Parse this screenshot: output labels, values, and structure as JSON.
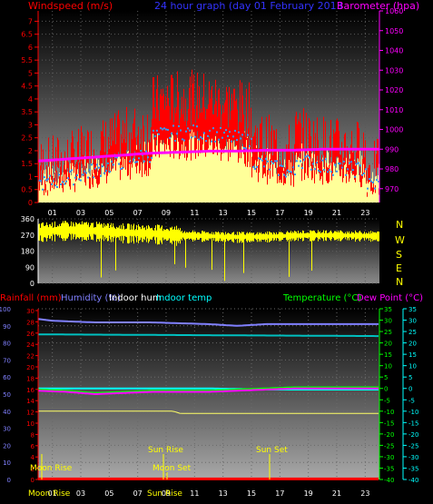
{
  "header": {
    "wind_label": "Windspeed (m/s)",
    "title": "24 hour graph (day 01 February 2013",
    "baro_label": "Barometer (hpa)"
  },
  "middle": {
    "compass": [
      "N",
      "W",
      "S",
      "E",
      "N"
    ]
  },
  "lower": {
    "rain_label": "Rainfall (mm)",
    "humidity_label": "Humidity (%)",
    "indoor_hum_label": "Indoor hum",
    "indoor_temp_label": "Indoor temp",
    "temp_label": "Temperature (°C)",
    "dew_label": "Dew Point (°C)"
  },
  "events": {
    "moon_rise": "Moon Rise",
    "moon_set": "Moon Set",
    "sun_rise": "Sun Rise",
    "sun_set": "Sun Set",
    "bottom_moon_rise": "Moon Rise",
    "bottom_sun_rise": "Sun Rise"
  },
  "colors": {
    "wind": "#ff0000",
    "gust_area": "#ffff99",
    "avg_wind": "#3399ff",
    "barometer": "#ff00ff",
    "direction": "#ffff00",
    "rainfall": "#ff0000",
    "humidity": "#8080ff",
    "indoor_hum": "#00c0c0",
    "indoor_temp": "#00ffff",
    "temperature": "#00ff00",
    "dew_point": "#ff00ff",
    "title": "#3333ff"
  },
  "chart_data": [
    {
      "type": "area",
      "title": "24 hour graph (day 01 February 2013",
      "x_ticks": [
        "01",
        "03",
        "05",
        "07",
        "09",
        "11",
        "13",
        "15",
        "17",
        "19",
        "21",
        "23"
      ],
      "xlim": [
        0,
        24
      ],
      "y_left_label": "Windspeed (m/s)",
      "y_left_ticks": [
        "0",
        "0.5",
        "1",
        "1.5",
        "2",
        "2.5",
        "3",
        "3.5",
        "4",
        "4.5",
        "5",
        "5.5",
        "6",
        "6.5",
        "7"
      ],
      "ylim_left": [
        0,
        7.4
      ],
      "y_right_label": "Barometer (hpa)",
      "y_right_ticks": [
        "970",
        "980",
        "990",
        "1000",
        "1010",
        "1020",
        "1030",
        "1040",
        "1050",
        "1060"
      ],
      "ylim_right": [
        963,
        1060
      ],
      "grid": true,
      "series": [
        {
          "name": "Barometer",
          "axis": "right",
          "x": [
            0,
            2,
            4,
            6,
            8,
            10,
            12,
            14,
            16,
            18,
            20,
            22,
            24
          ],
          "values": [
            984,
            985,
            986,
            987,
            988,
            988.5,
            989,
            989,
            989.5,
            989.5,
            990,
            990,
            990
          ]
        }
      ]
    },
    {
      "type": "scatter",
      "title": "",
      "x_ticks": [
        "01",
        "03",
        "05",
        "07",
        "09",
        "11",
        "13",
        "15",
        "17",
        "19",
        "21",
        "23"
      ],
      "xlim": [
        0,
        24
      ],
      "y_ticks": [
        "0",
        "90",
        "180",
        "270",
        "360"
      ],
      "ylim": [
        0,
        360
      ],
      "compass_labels": [
        "N",
        "W",
        "S",
        "E",
        "N"
      ],
      "grid": true,
      "series": [
        {
          "name": "",
          "x": [
            0,
            2,
            4,
            6,
            8,
            10,
            12,
            14,
            16,
            18,
            20,
            22,
            24
          ],
          "values": [
            290,
            300,
            295,
            285,
            280,
            270,
            265,
            260,
            262,
            268,
            270,
            268,
            265
          ]
        }
      ]
    },
    {
      "type": "line",
      "title": "",
      "x_ticks": [
        "01",
        "03",
        "05",
        "07",
        "09",
        "11",
        "13",
        "15",
        "17",
        "19",
        "21",
        "23"
      ],
      "xlim": [
        0,
        24
      ],
      "y_left_ticks_outer": [
        "0",
        "10",
        "20",
        "30",
        "40",
        "50",
        "60",
        "70",
        "80",
        "90",
        "100"
      ],
      "y_left_ticks_inner": [
        "0",
        "2",
        "4",
        "6",
        "8",
        "10",
        "12",
        "14",
        "16",
        "18",
        "20",
        "22",
        "24",
        "26",
        "28",
        "30"
      ],
      "y_right_ticks_inner": [
        "35",
        "30",
        "25",
        "20",
        "15",
        "10",
        "5",
        "0",
        "-5",
        "-10",
        "-15",
        "-20",
        "-25",
        "-30",
        "-35",
        "-40"
      ],
      "y_right_ticks_outer": [
        "35",
        "30",
        "25",
        "20",
        "15",
        "10",
        "5",
        "0",
        "-5",
        "-10",
        "-15",
        "-20",
        "-25",
        "-30",
        "-35",
        "-40"
      ],
      "ylim_percent": [
        0,
        100
      ],
      "ylim_temp": [
        -40,
        35
      ],
      "grid": true,
      "series": [
        {
          "name": "Humidity (%)",
          "axis": "percent",
          "x": [
            0,
            1,
            4,
            8,
            12,
            14,
            16,
            20,
            24
          ],
          "values": [
            94,
            93,
            92,
            92,
            91,
            90,
            91,
            91,
            91
          ]
        },
        {
          "name": "Indoor hum",
          "axis": "percent",
          "x": [
            0,
            24
          ],
          "values": [
            85,
            84
          ]
        },
        {
          "name": "Indoor temp",
          "axis": "temp",
          "x": [
            0,
            4,
            8,
            12,
            16,
            20,
            24
          ],
          "values": [
            0,
            0,
            0,
            0,
            -0.5,
            -0.5,
            -0.5
          ]
        },
        {
          "name": "Temperature (°C)",
          "axis": "temp",
          "x": [
            0,
            2,
            4,
            6,
            8,
            10,
            12,
            14,
            16,
            18,
            20,
            22,
            24
          ],
          "values": [
            -0.5,
            -1,
            -2,
            -1.5,
            -1,
            -1,
            -1,
            -0.5,
            0,
            0.5,
            0.5,
            0.5,
            0.5
          ]
        },
        {
          "name": "Dew Point (°C)",
          "axis": "temp",
          "x": [
            0,
            2,
            4,
            6,
            8,
            10,
            12,
            14,
            16,
            18,
            20,
            22,
            24
          ],
          "values": [
            -1,
            -1.5,
            -2.5,
            -2,
            -1.5,
            -1.5,
            -1.5,
            -1,
            -0.5,
            0,
            0,
            0,
            0
          ]
        },
        {
          "name": "Rainfall (mm)",
          "axis": "percent",
          "x": [
            0,
            24
          ],
          "values": [
            0.3,
            0.3
          ]
        }
      ],
      "extra_line": {
        "x": [
          0,
          9.5,
          10,
          24
        ],
        "values": [
          -10,
          -10,
          -11,
          -11
        ]
      }
    }
  ]
}
